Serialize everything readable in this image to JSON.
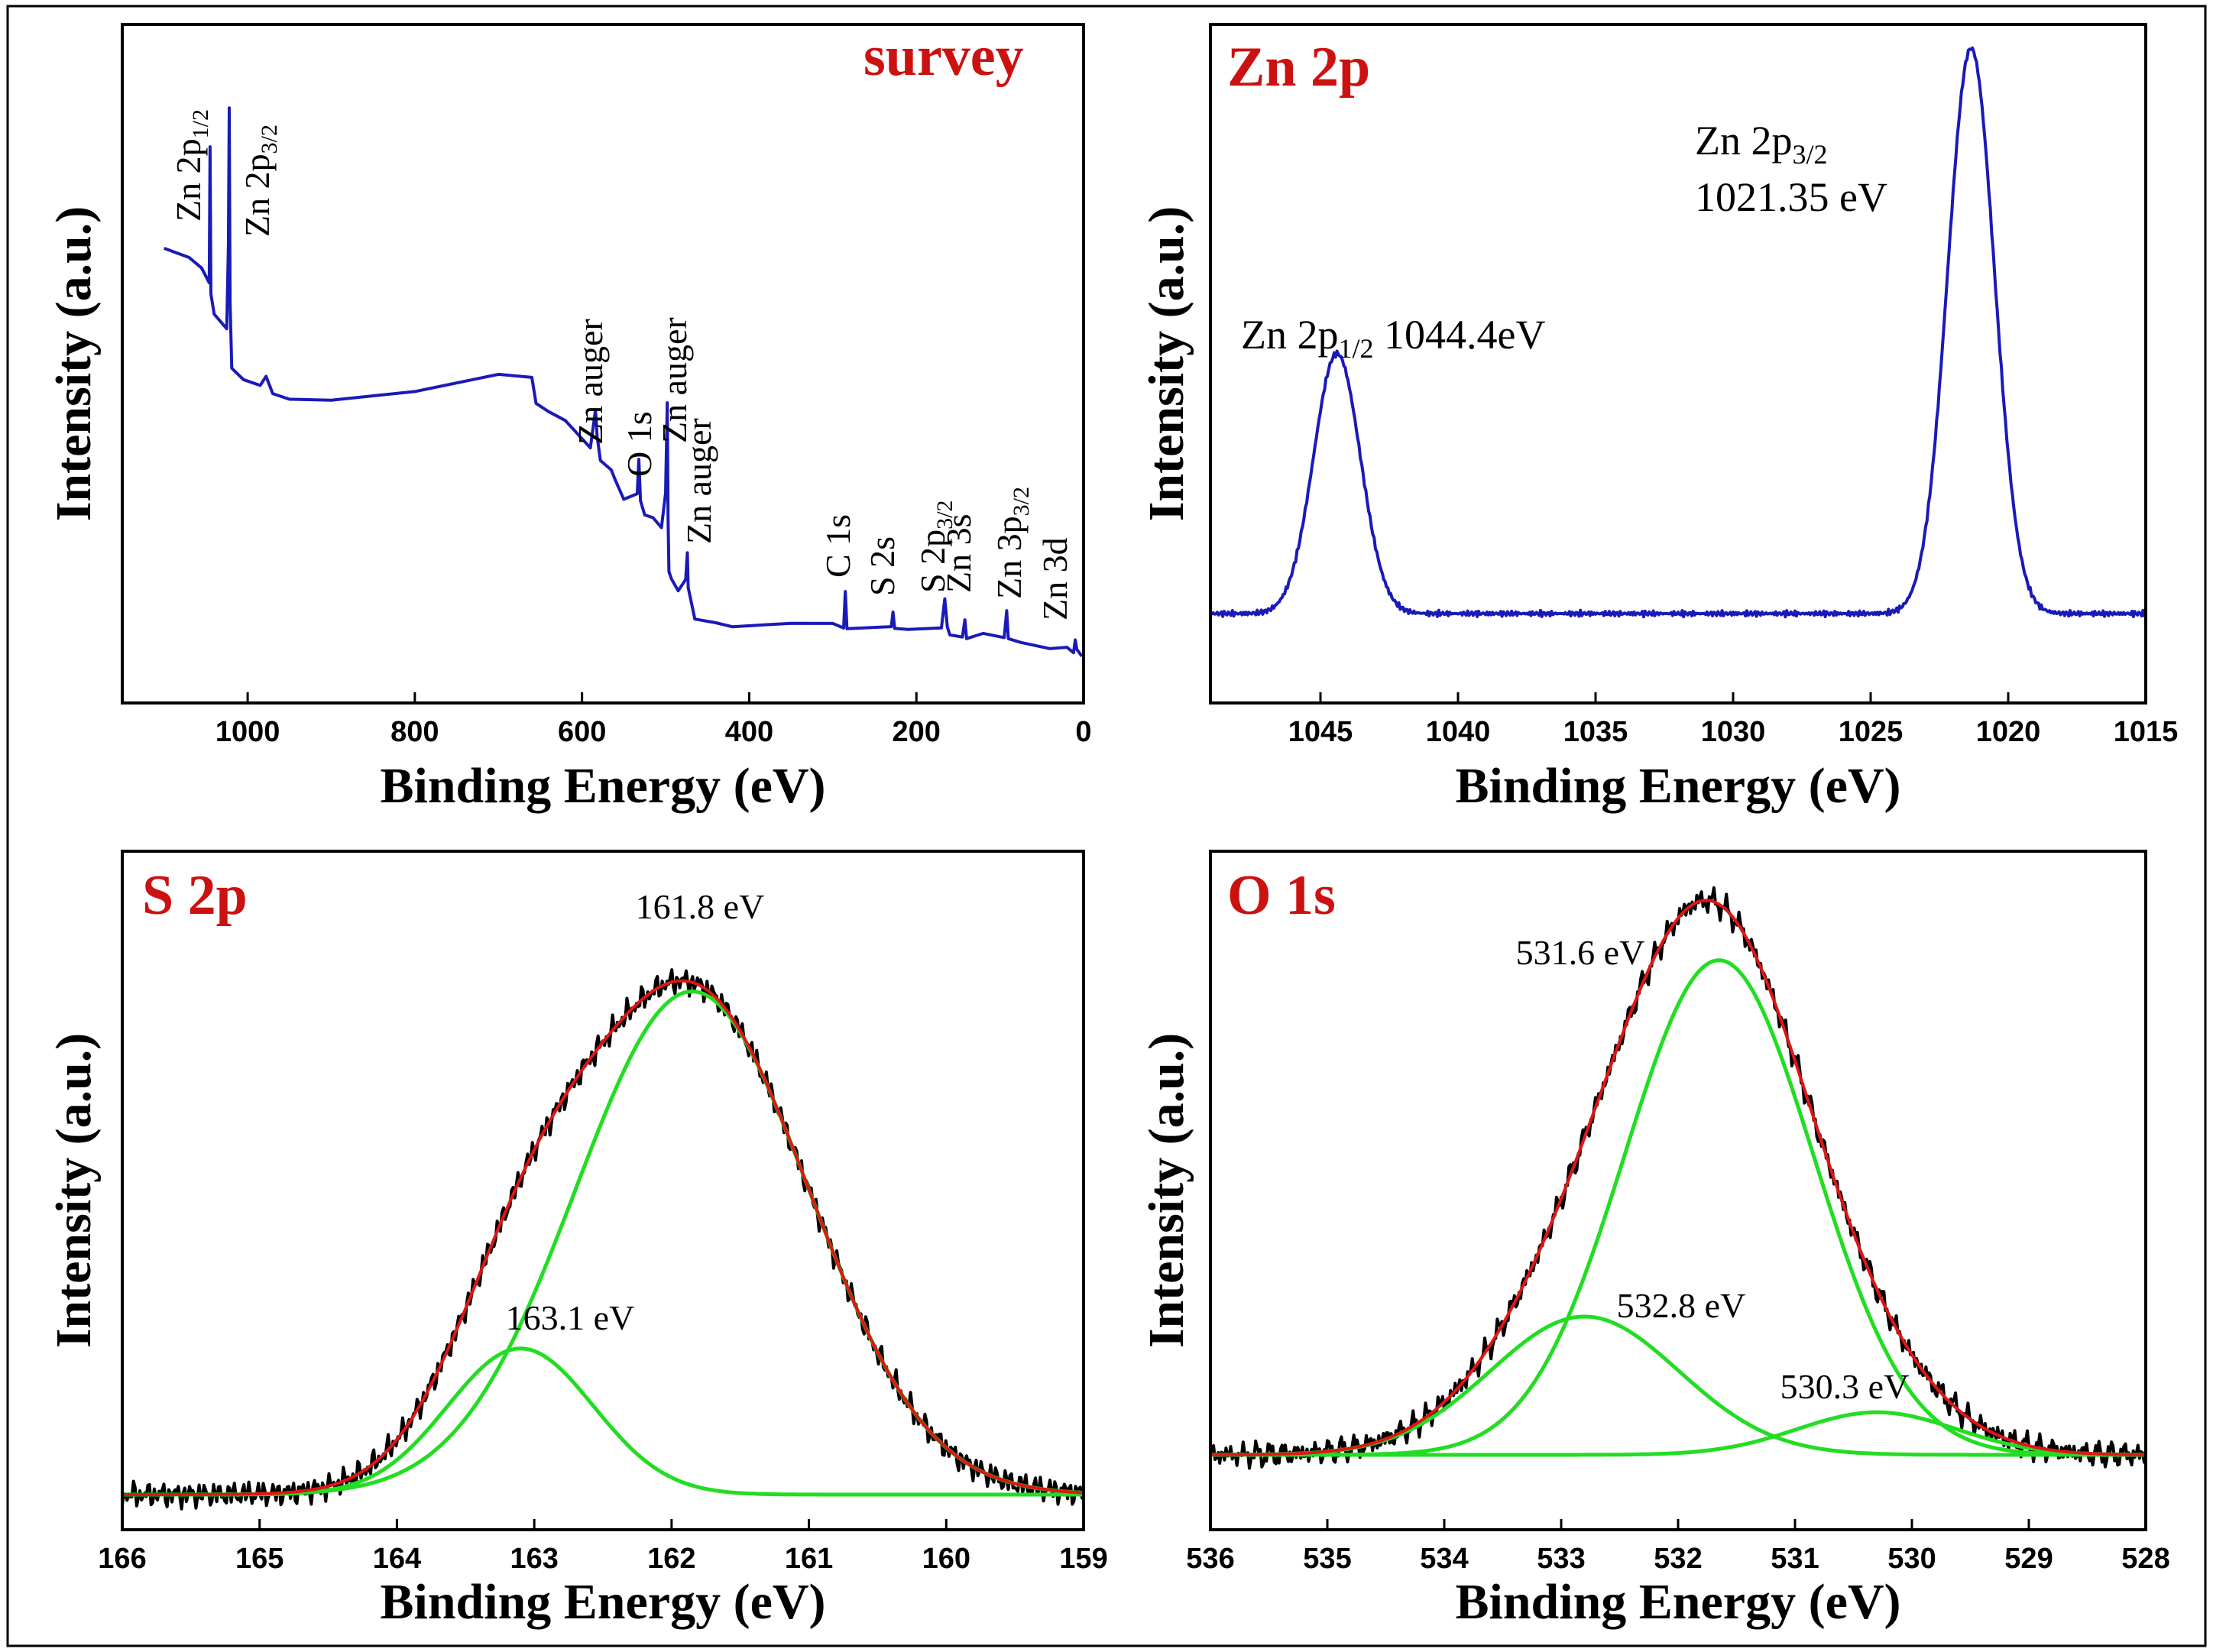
{
  "colors": {
    "spectrum": "#1a1ab8",
    "raw": "#000000",
    "fit": "#e01515",
    "component": "#22dd22",
    "title": "#cc1111"
  },
  "chart_data": [
    {
      "type": "line",
      "title": "survey",
      "xlabel": "Binding Energy (eV)",
      "ylabel": "Intensity (a.u.)",
      "xlim": [
        1150,
        0
      ],
      "xticks": [
        1000,
        800,
        600,
        400,
        200,
        0
      ],
      "ylim": [
        0,
        100
      ],
      "series": [
        {
          "name": "survey",
          "color_key": "spectrum",
          "x": [
            1100,
            1070,
            1055,
            1046,
            1045,
            1044,
            1040,
            1025,
            1023,
            1022,
            1021,
            1019,
            1005,
            985,
            978,
            970,
            950,
            900,
            800,
            700,
            660,
            655,
            640,
            620,
            590,
            584,
            583,
            582,
            578,
            565,
            560,
            550,
            534,
            532,
            530,
            525,
            515,
            505,
            500,
            498,
            497,
            496,
            493,
            485,
            476,
            474,
            473,
            465,
            440,
            420,
            350,
            300,
            287,
            285,
            283,
            270,
            230,
            228,
            226,
            210,
            170,
            166,
            163,
            160,
            145,
            142,
            140,
            120,
            95,
            92,
            90,
            75,
            40,
            20,
            12,
            10,
            8,
            2
          ],
          "y": [
            69,
            68,
            66,
            64,
            86,
            62,
            58,
            56,
            70,
            94,
            60,
            49,
            47,
            46,
            48,
            45,
            44,
            44,
            46,
            48,
            47,
            43,
            42,
            40,
            36,
            42,
            41,
            38,
            34,
            32,
            30,
            27,
            28,
            34,
            27,
            25,
            24,
            22,
            28,
            43,
            23,
            15,
            13,
            12,
            13,
            18,
            12,
            7,
            6,
            6,
            6,
            6,
            5,
            11,
            5,
            5,
            5,
            8,
            5,
            5,
            5,
            10,
            5,
            4,
            4,
            6,
            4,
            4,
            4,
            8,
            4,
            3,
            2,
            2,
            1,
            3,
            1,
            1
          ]
        }
      ],
      "annotations": [
        "Zn 2p1/2",
        "Zn 2p3/2",
        "Zn auger",
        "O 1s",
        "Zn auger",
        "Zn auger",
        "C 1s",
        "S 2s",
        "S 2p3/2",
        "Zn 3s",
        "Zn 3p3/2",
        "Zn 3d"
      ]
    },
    {
      "type": "line",
      "title": "Zn 2p",
      "xlabel": "Binding Energy (eV)",
      "ylabel": "Intensity (a.u.)",
      "xlim": [
        1049,
        1015
      ],
      "xticks": [
        1045,
        1040,
        1035,
        1030,
        1025,
        1020,
        1015
      ],
      "ylim": [
        0,
        100
      ],
      "baseline": 5,
      "peaks": [
        {
          "label": "Zn 2p1/2 1044.4eV",
          "center": 1044.4,
          "height": 46,
          "fwhm": 2.0
        },
        {
          "label": "Zn 2p3/2 1021.35 eV",
          "center": 1021.35,
          "height": 100,
          "fwhm": 2.0
        }
      ],
      "series": [
        {
          "name": "Zn 2p",
          "color_key": "spectrum"
        }
      ]
    },
    {
      "type": "line",
      "title": "S 2p",
      "xlabel": "Binding Energy (eV)",
      "ylabel": "Intensity (a.u.)",
      "xlim": [
        166,
        159
      ],
      "xticks": [
        166,
        165,
        164,
        163,
        162,
        161,
        160,
        159
      ],
      "ylim": [
        0,
        100
      ],
      "baseline": 0,
      "components": [
        {
          "label": "163.1 eV",
          "center": 163.1,
          "height": 27,
          "fwhm": 1.25,
          "color_key": "component"
        },
        {
          "label": "161.8 eV",
          "center": 161.85,
          "height": 93,
          "fwhm": 2.0,
          "color_key": "component"
        }
      ],
      "series": [
        {
          "name": "raw",
          "color_key": "raw"
        },
        {
          "name": "fit",
          "color_key": "fit"
        }
      ]
    },
    {
      "type": "line",
      "title": "O 1s",
      "xlabel": "Binding Energy (eV)",
      "ylabel": "Intensity (a.u.)",
      "xlim": [
        536,
        528
      ],
      "xticks": [
        536,
        535,
        534,
        533,
        532,
        531,
        530,
        529,
        528
      ],
      "ylim": [
        0,
        100
      ],
      "baseline": 0,
      "components": [
        {
          "label": "532.8 eV",
          "center": 532.8,
          "height": 26,
          "fwhm": 1.9,
          "color_key": "component"
        },
        {
          "label": "531.6 eV",
          "center": 531.65,
          "height": 93,
          "fwhm": 1.9,
          "color_key": "component"
        },
        {
          "label": "530.3 eV",
          "center": 530.3,
          "height": 8,
          "fwhm": 1.6,
          "color_key": "component"
        }
      ],
      "series": [
        {
          "name": "raw",
          "color_key": "raw"
        },
        {
          "name": "fit",
          "color_key": "fit"
        }
      ]
    }
  ]
}
